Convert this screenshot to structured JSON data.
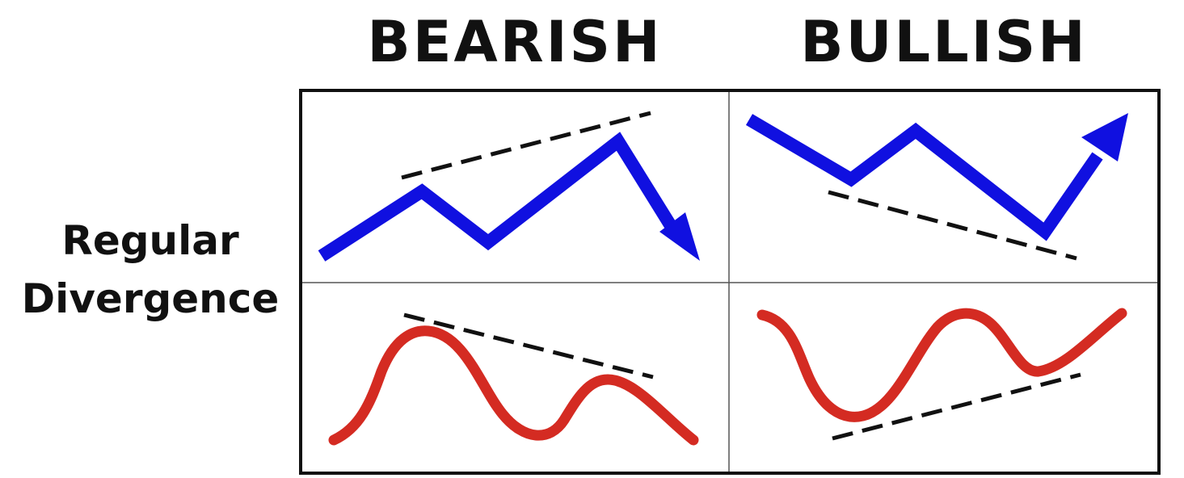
{
  "headings": {
    "bearish": "BEARISH",
    "bullish": "BULLISH"
  },
  "row_label": {
    "line1": "Regular",
    "line2": "Divergence"
  },
  "colors": {
    "price_line": "#1010e0",
    "indicator_line": "#d42b22",
    "trendline": "#111111",
    "border": "#111111",
    "divider": "#555555"
  }
}
